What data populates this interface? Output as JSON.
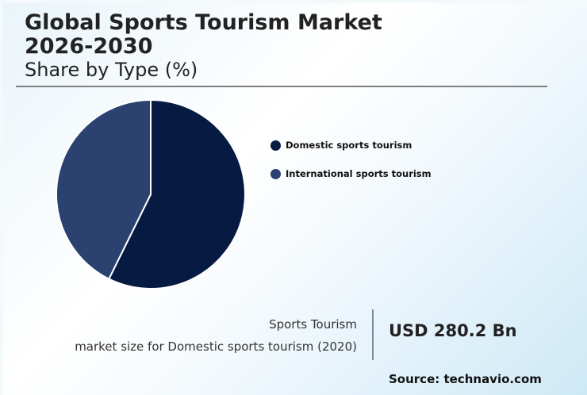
{
  "header": {
    "title_line1": "Global Sports Tourism Market",
    "title_line2": "2026-2030",
    "subtitle": "Share by Type (%)"
  },
  "colors": {
    "domestic": "#071b42",
    "international": "#2b4170",
    "separator": "#ffffff"
  },
  "legend": [
    {
      "label": "Domestic sports tourism",
      "color": "#071b42"
    },
    {
      "label": "International sports tourism",
      "color": "#2b4170"
    }
  ],
  "stat": {
    "line1": "Sports Tourism",
    "line2": "market size for Domestic sports tourism (2020)",
    "value": "USD 280.2 Bn"
  },
  "source": "Source: technavio.com",
  "chart_data": {
    "type": "pie",
    "title": "Global Sports Tourism Market 2026-2030",
    "subtitle": "Share by Type (%)",
    "categories": [
      "Domestic sports tourism",
      "International sports tourism"
    ],
    "values": [
      57.3,
      42.7
    ],
    "colors": [
      "#071b42",
      "#2b4170"
    ],
    "start_angle": "12 o'clock, clockwise",
    "legend_position": "right",
    "annotations": [
      "Sports Tourism market size for Domestic sports tourism (2020): USD 280.2 Bn"
    ]
  }
}
